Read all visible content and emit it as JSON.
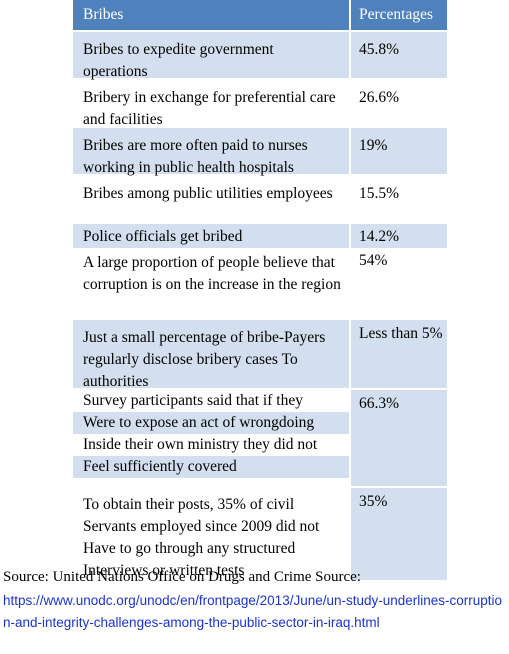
{
  "table": {
    "header": {
      "col1": "Bribes",
      "col2": "Percentages"
    },
    "rows": [
      {
        "label": "Bribes to expedite government operations",
        "value": "45.8%"
      },
      {
        "label": "Bribery in exchange for preferential care and facilities",
        "value": "26.6%"
      },
      {
        "label": "Bribes are more often paid to nurses working in public health hospitals",
        "value": "19%"
      },
      {
        "label": "Bribes among public utilities employees",
        "value": "15.5%"
      },
      {
        "label": "Police officials get bribed",
        "value": "14.2%"
      },
      {
        "label": "A large proportion of people believe that corruption is on the increase in the region",
        "value": "54%"
      },
      {
        "label": "Just a small percentage of bribe-Payers regularly disclose bribery cases To authorities",
        "value": "Less than 5%"
      },
      {
        "label": "Survey participants said that if they Were to expose an act of wrongdoing Inside their own ministry they did not Feel sufficiently covered",
        "value": "66.3%"
      },
      {
        "label": "To obtain their posts, 35% of civil Servants employed since 2009 did not Have to go through any structured Interviews or written tests",
        "value": "35%"
      }
    ],
    "survey_lines": [
      "Survey participants said that if they",
      "Were to expose an act of wrongdoing",
      "Inside their own ministry they did not",
      "Feel sufficiently covered"
    ]
  },
  "source": "Source: United Nations Office on Drugs and Crime Source:",
  "url": "https://www.unodc.org/unodc/en/frontpage/2013/June/un-study-underlines-corruption-and-integrity-challenges-among-the-public-sector-in-iraq.html",
  "colors": {
    "header_bg": "#4f81bd",
    "shade": "#d3dfee",
    "link": "#1a33d1"
  }
}
